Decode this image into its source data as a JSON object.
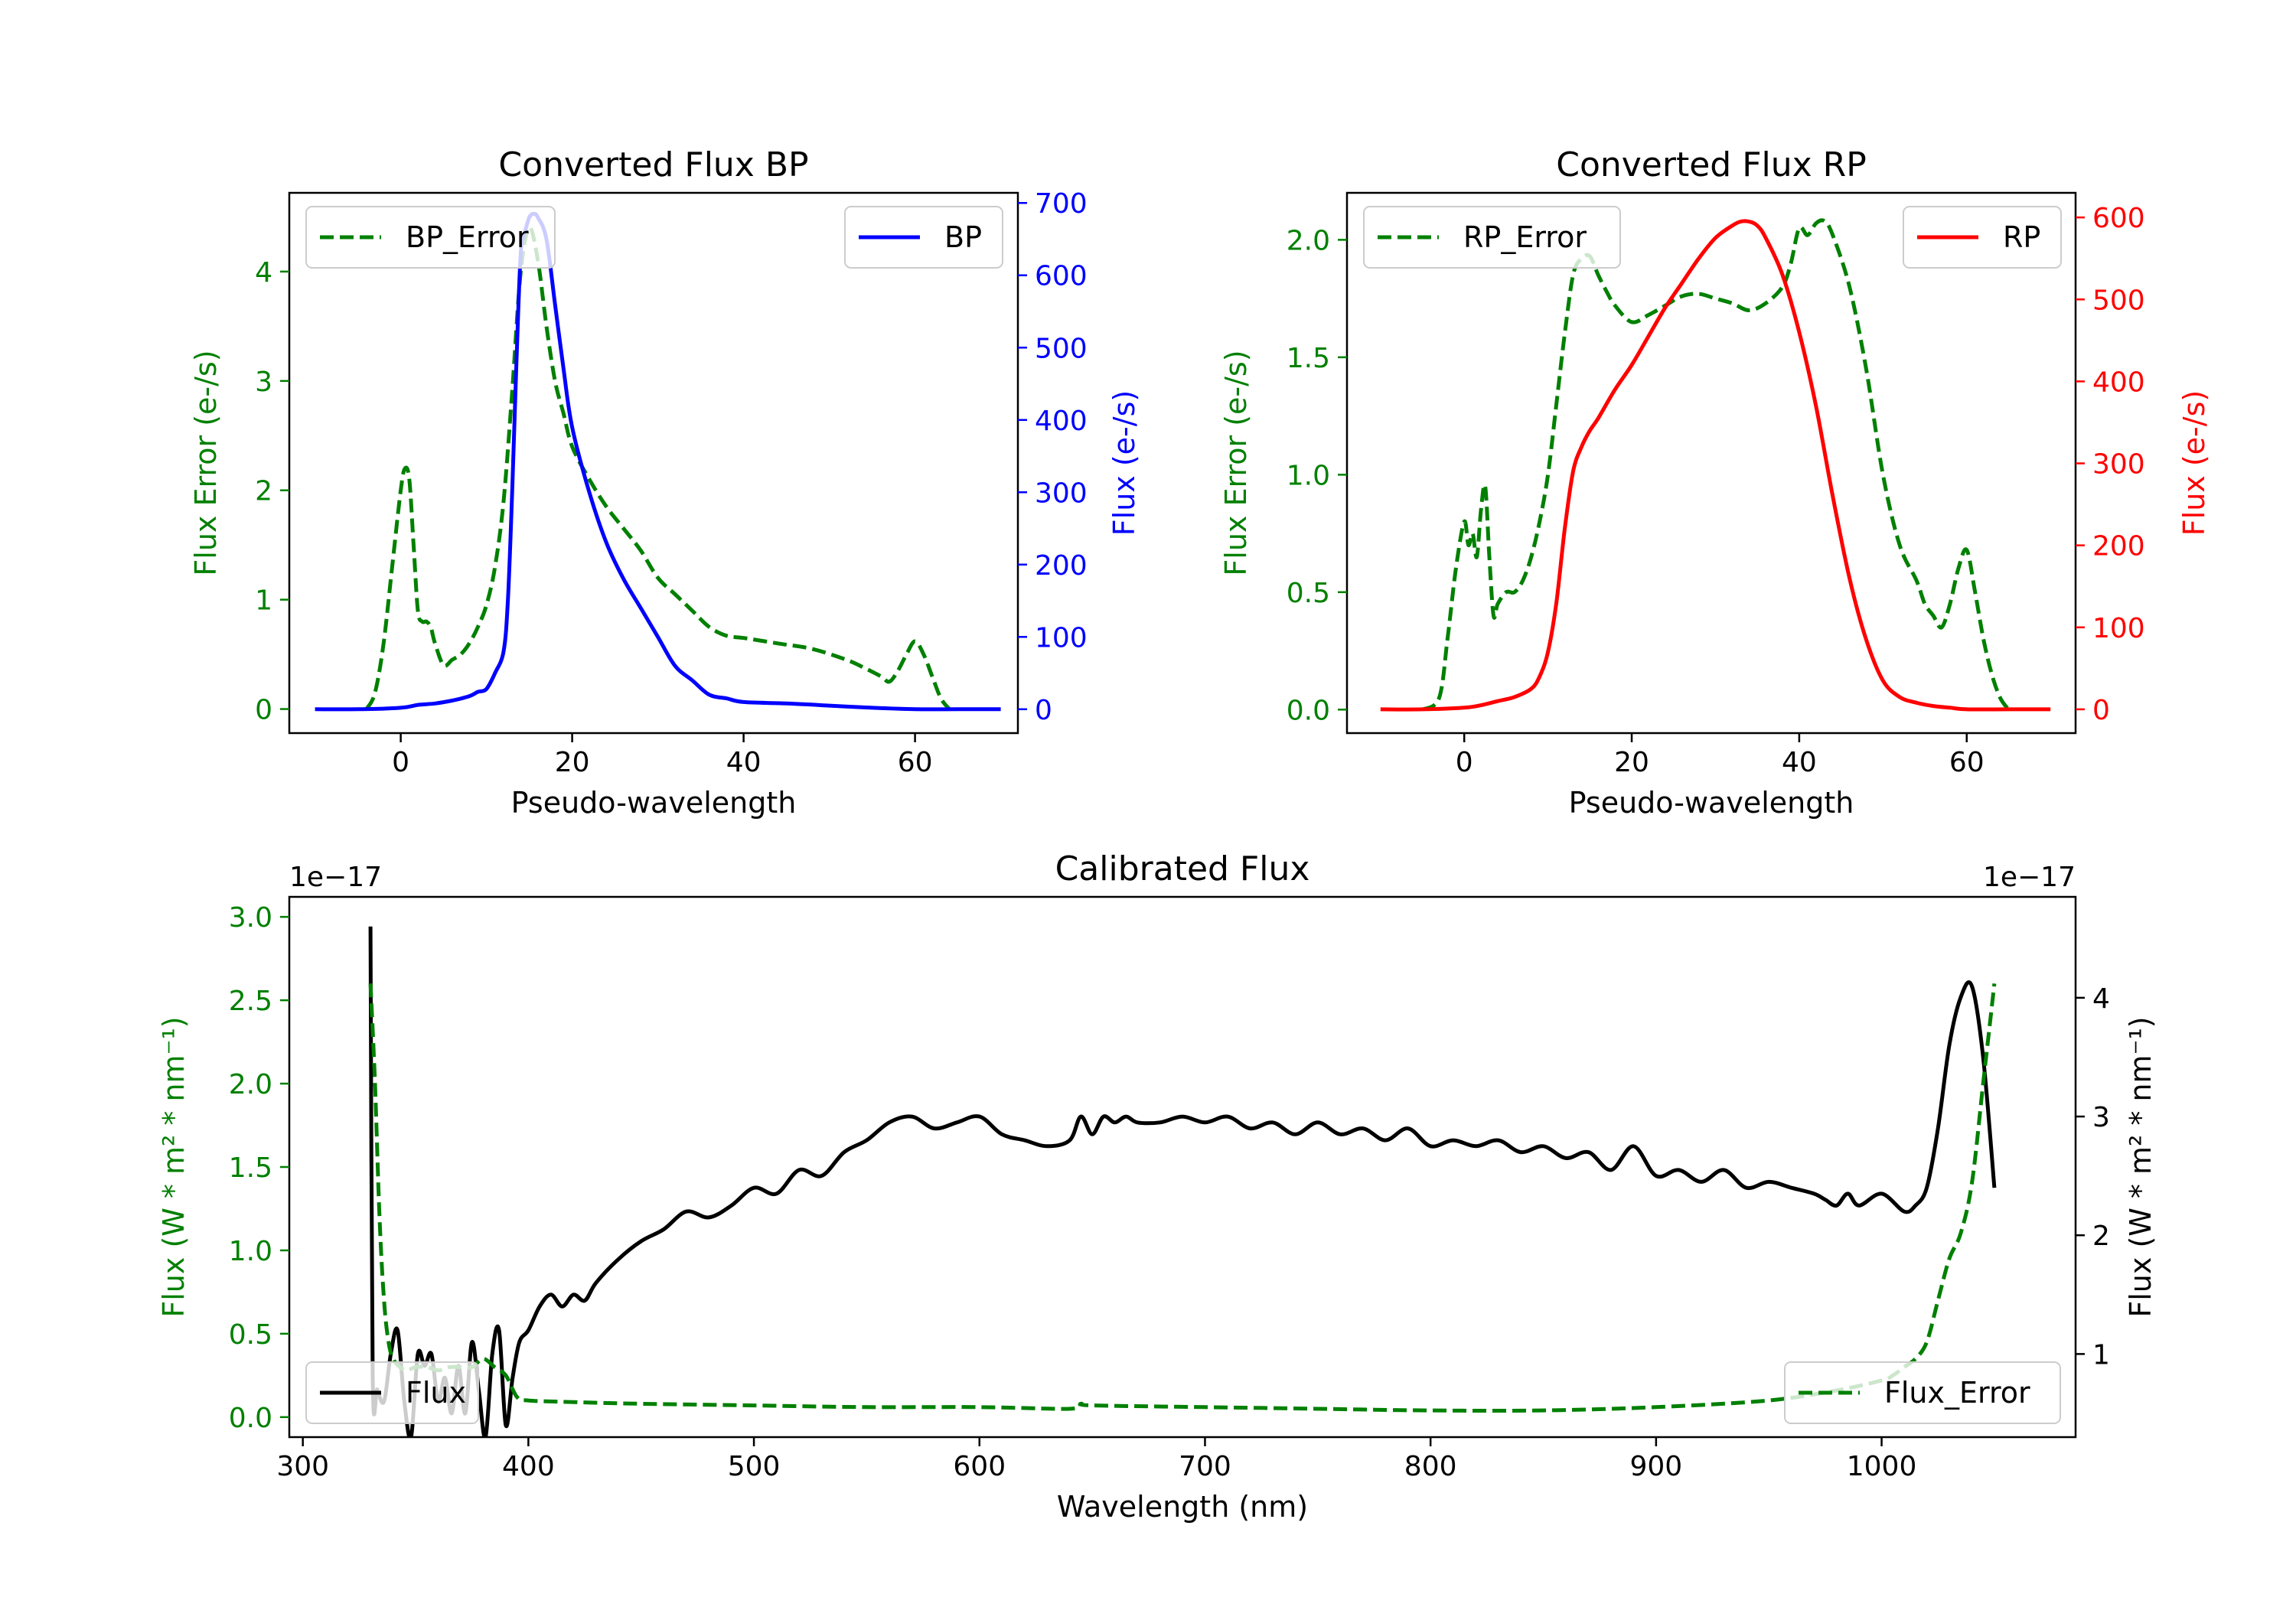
{
  "chart_data": [
    {
      "type": "line",
      "title": "Converted Flux BP",
      "xlabel": "Pseudo-wavelength",
      "ylabel_left": "Flux Error (e-/s)",
      "ylabel_right": "Flux (e-/s)",
      "xlim": [
        -13,
        72
      ],
      "ylim_left": [
        -0.22,
        4.72
      ],
      "ylim_right": [
        -33,
        714
      ],
      "xticks": [
        0,
        20,
        40,
        60
      ],
      "yticks_left": [
        0,
        1,
        2,
        3,
        4
      ],
      "yticks_right": [
        0,
        100,
        200,
        300,
        400,
        500,
        600,
        700
      ],
      "colors": {
        "left": "#008000",
        "right": "#0000ff",
        "axis": "#000000"
      },
      "legend_left": "BP_Error",
      "legend_right": "BP",
      "series": [
        {
          "name": "BP_Error",
          "axis": "left",
          "style": "dashed",
          "color": "#008000",
          "x": [
            -4,
            -3,
            -2,
            -1,
            0,
            0.5,
            1,
            1.5,
            2,
            2.5,
            3,
            3.5,
            4,
            5,
            6,
            7,
            8,
            9,
            10,
            11,
            12,
            13,
            14,
            15,
            16,
            17,
            18,
            19,
            20,
            22,
            24,
            26,
            28,
            30,
            32,
            34,
            36,
            38,
            40,
            44,
            48,
            52,
            54,
            56,
            57,
            58,
            59,
            60,
            61,
            62,
            63,
            64
          ],
          "y": [
            0.0,
            0.15,
            0.6,
            1.3,
            2.0,
            2.2,
            2.1,
            1.5,
            0.9,
            0.8,
            0.8,
            0.75,
            0.6,
            0.4,
            0.45,
            0.5,
            0.6,
            0.75,
            0.95,
            1.3,
            1.9,
            2.9,
            4.0,
            4.4,
            4.1,
            3.5,
            3.0,
            2.7,
            2.4,
            2.1,
            1.85,
            1.65,
            1.45,
            1.2,
            1.05,
            0.9,
            0.75,
            0.67,
            0.65,
            0.6,
            0.55,
            0.45,
            0.38,
            0.3,
            0.25,
            0.35,
            0.5,
            0.62,
            0.5,
            0.3,
            0.1,
            0.0
          ]
        },
        {
          "name": "BP",
          "axis": "right",
          "style": "solid",
          "color": "#0000ff",
          "x": [
            -10,
            -5,
            0,
            2,
            4,
            6,
            8,
            9,
            10,
            11,
            12,
            12.5,
            13,
            13.5,
            14,
            14.5,
            15,
            15.5,
            16,
            17,
            18,
            19,
            20,
            22,
            24,
            26,
            28,
            30,
            32,
            34,
            36,
            38,
            40,
            45,
            50,
            55,
            60,
            65,
            70
          ],
          "y": [
            0,
            0,
            2,
            6,
            8,
            12,
            18,
            24,
            28,
            50,
            80,
            150,
            300,
            480,
            630,
            660,
            680,
            685,
            680,
            650,
            560,
            470,
            390,
            300,
            230,
            180,
            140,
            100,
            60,
            40,
            20,
            15,
            10,
            8,
            5,
            2,
            0,
            0,
            0
          ]
        }
      ]
    },
    {
      "type": "line",
      "title": "Converted Flux RP",
      "xlabel": "Pseudo-wavelength",
      "ylabel_left": "Flux Error (e-/s)",
      "ylabel_right": "Flux (e-/s)",
      "xlim": [
        -14,
        73
      ],
      "ylim_left": [
        -0.1,
        2.2
      ],
      "ylim_right": [
        -29,
        630
      ],
      "xticks": [
        0,
        20,
        40,
        60
      ],
      "yticks_left": [
        0.0,
        0.5,
        1.0,
        1.5,
        2.0
      ],
      "ytick_labels_left": [
        "0.0",
        "0.5",
        "1.0",
        "1.5",
        "2.0"
      ],
      "yticks_right": [
        0,
        100,
        200,
        300,
        400,
        500,
        600
      ],
      "colors": {
        "left": "#008000",
        "right": "#ff0000",
        "axis": "#000000"
      },
      "legend_left": "RP_Error",
      "legend_right": "RP",
      "series": [
        {
          "name": "RP_Error",
          "axis": "left",
          "style": "dashed",
          "color": "#008000",
          "x": [
            -5,
            -3,
            -2,
            -1,
            0,
            0.5,
            1,
            1.5,
            2,
            2.5,
            3,
            3.5,
            4,
            5,
            6,
            7,
            8,
            9,
            10,
            11,
            12,
            13,
            14,
            15,
            16,
            17,
            18,
            20,
            22,
            24,
            26,
            28,
            30,
            32,
            34,
            36,
            38,
            39,
            40,
            41,
            42,
            43,
            44,
            46,
            48,
            50,
            52,
            54,
            55,
            56,
            57,
            58,
            59,
            60,
            61,
            62,
            63,
            64,
            65
          ],
          "y": [
            0.0,
            0.05,
            0.3,
            0.6,
            0.8,
            0.7,
            0.75,
            0.65,
            0.85,
            0.95,
            0.65,
            0.4,
            0.45,
            0.5,
            0.5,
            0.55,
            0.65,
            0.8,
            1.0,
            1.3,
            1.6,
            1.85,
            1.92,
            1.93,
            1.85,
            1.78,
            1.72,
            1.65,
            1.68,
            1.72,
            1.76,
            1.77,
            1.75,
            1.73,
            1.7,
            1.73,
            1.8,
            1.9,
            2.05,
            2.02,
            2.07,
            2.08,
            2.02,
            1.8,
            1.45,
            1.0,
            0.7,
            0.55,
            0.45,
            0.4,
            0.35,
            0.45,
            0.6,
            0.68,
            0.5,
            0.3,
            0.15,
            0.05,
            0.0
          ]
        },
        {
          "name": "RP",
          "axis": "right",
          "style": "solid",
          "color": "#ff0000",
          "x": [
            -10,
            -5,
            0,
            2,
            4,
            6,
            8,
            9,
            10,
            11,
            12,
            13,
            14,
            15,
            16,
            18,
            20,
            22,
            24,
            26,
            28,
            30,
            32,
            33,
            34,
            35,
            36,
            38,
            40,
            42,
            44,
            46,
            48,
            50,
            52,
            54,
            56,
            58,
            60,
            65,
            70
          ],
          "y": [
            0,
            0,
            2,
            5,
            10,
            15,
            25,
            40,
            70,
            130,
            220,
            290,
            320,
            340,
            355,
            390,
            420,
            455,
            490,
            520,
            550,
            575,
            590,
            595,
            595,
            590,
            575,
            530,
            460,
            370,
            260,
            160,
            85,
            35,
            15,
            8,
            4,
            2,
            0,
            0,
            0
          ]
        }
      ]
    },
    {
      "type": "line",
      "title": "Calibrated Flux",
      "xlabel": "Wavelength (nm)",
      "ylabel_left": "Flux (W * m² * nm⁻¹)",
      "ylabel_right": "Flux (W * m² * nm⁻¹)",
      "scale_left": "1e−17",
      "scale_right": "1e−17",
      "xlim": [
        294,
        1086
      ],
      "ylim_left": [
        -0.12,
        3.12
      ],
      "ylim_right": [
        0.3,
        4.85
      ],
      "xticks": [
        300,
        400,
        500,
        600,
        700,
        800,
        900,
        1000
      ],
      "yticks_left": [
        0.0,
        0.5,
        1.0,
        1.5,
        2.0,
        2.5,
        3.0
      ],
      "ytick_labels_left": [
        "0.0",
        "0.5",
        "1.0",
        "1.5",
        "2.0",
        "2.5",
        "3.0"
      ],
      "yticks_right": [
        1,
        2,
        3,
        4
      ],
      "colors": {
        "left": "#008000",
        "right": "#000000",
        "axis": "#000000"
      },
      "legend_left": "Flux",
      "legend_right": "Flux_Error",
      "series": [
        {
          "name": "Flux",
          "axis": "right",
          "style": "solid",
          "color": "#000000",
          "x": [
            330,
            331,
            333,
            336,
            339,
            342,
            345,
            348,
            351,
            354,
            357,
            360,
            363,
            366,
            369,
            372,
            375,
            378,
            381,
            384,
            387,
            390,
            393,
            396,
            400,
            405,
            410,
            415,
            420,
            425,
            430,
            440,
            450,
            460,
            470,
            480,
            490,
            500,
            510,
            520,
            530,
            540,
            550,
            560,
            570,
            580,
            590,
            600,
            610,
            620,
            630,
            640,
            645,
            650,
            655,
            660,
            665,
            670,
            680,
            690,
            700,
            710,
            720,
            730,
            740,
            750,
            760,
            770,
            780,
            790,
            800,
            810,
            820,
            830,
            840,
            850,
            860,
            870,
            880,
            890,
            900,
            910,
            920,
            930,
            940,
            950,
            960,
            970,
            975,
            980,
            985,
            990,
            1000,
            1010,
            1015,
            1020,
            1025,
            1030,
            1035,
            1040,
            1045,
            1050
          ],
          "y": [
            4.6,
            0.8,
            0.7,
            0.6,
            1.0,
            1.2,
            0.6,
            0.3,
            1.0,
            0.9,
            1.0,
            0.6,
            0.8,
            0.5,
            0.9,
            0.5,
            1.1,
            0.7,
            0.3,
            1.0,
            1.2,
            0.4,
            0.8,
            1.1,
            1.2,
            1.4,
            1.5,
            1.4,
            1.5,
            1.45,
            1.6,
            1.8,
            1.95,
            2.05,
            2.2,
            2.15,
            2.25,
            2.4,
            2.35,
            2.55,
            2.5,
            2.7,
            2.8,
            2.95,
            3.0,
            2.9,
            2.95,
            3.0,
            2.85,
            2.8,
            2.75,
            2.8,
            3.0,
            2.85,
            3.0,
            2.95,
            3.0,
            2.95,
            2.95,
            3.0,
            2.95,
            3.0,
            2.9,
            2.95,
            2.85,
            2.95,
            2.85,
            2.9,
            2.8,
            2.9,
            2.75,
            2.8,
            2.75,
            2.8,
            2.7,
            2.75,
            2.65,
            2.7,
            2.55,
            2.75,
            2.5,
            2.55,
            2.45,
            2.55,
            2.4,
            2.45,
            2.4,
            2.35,
            2.3,
            2.25,
            2.35,
            2.25,
            2.35,
            2.2,
            2.25,
            2.4,
            2.9,
            3.6,
            4.0,
            4.1,
            3.5,
            2.4
          ]
        },
        {
          "name": "Flux_Error",
          "axis": "left",
          "style": "dashed",
          "color": "#008000",
          "x": [
            330,
            332,
            334,
            336,
            338,
            340,
            343,
            346,
            350,
            355,
            360,
            365,
            370,
            375,
            380,
            385,
            390,
            395,
            400,
            420,
            450,
            500,
            550,
            600,
            640,
            645,
            650,
            700,
            750,
            800,
            850,
            900,
            950,
            980,
            1000,
            1005,
            1010,
            1015,
            1020,
            1025,
            1030,
            1035,
            1040,
            1045,
            1050
          ],
          "y": [
            2.6,
            2.0,
            1.2,
            0.7,
            0.45,
            0.35,
            0.3,
            0.28,
            0.3,
            0.3,
            0.28,
            0.3,
            0.3,
            0.3,
            0.35,
            0.3,
            0.25,
            0.12,
            0.1,
            0.09,
            0.08,
            0.07,
            0.06,
            0.06,
            0.05,
            0.08,
            0.07,
            0.06,
            0.05,
            0.04,
            0.04,
            0.06,
            0.1,
            0.16,
            0.22,
            0.25,
            0.3,
            0.35,
            0.45,
            0.7,
            0.95,
            1.1,
            1.4,
            2.0,
            2.6
          ]
        }
      ]
    }
  ]
}
